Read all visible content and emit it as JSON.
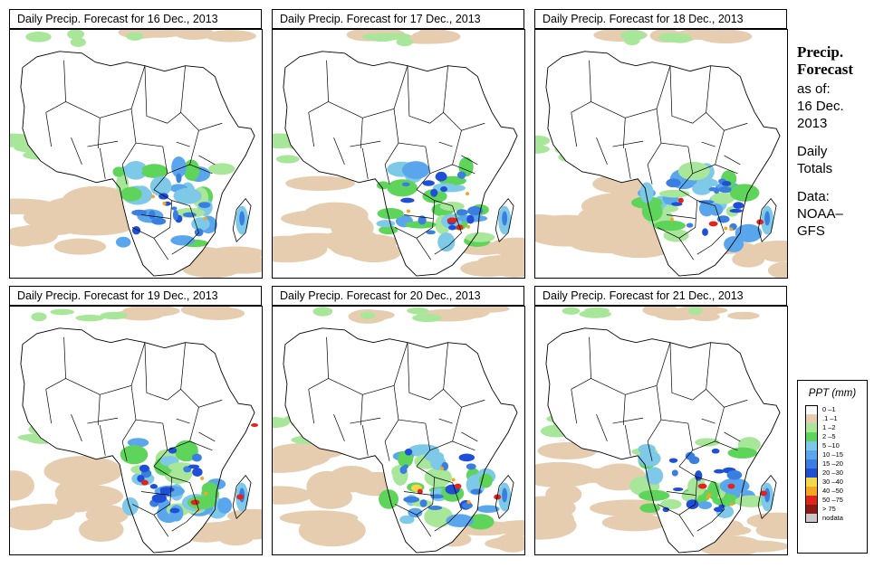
{
  "panels": [
    {
      "title": "Daily Precip. Forecast for  16 Dec., 2013"
    },
    {
      "title": "Daily Precip. Forecast for  17 Dec., 2013"
    },
    {
      "title": "Daily Precip. Forecast for  18 Dec., 2013"
    },
    {
      "title": "Daily Precip. Forecast for  19 Dec., 2013"
    },
    {
      "title": "Daily Precip. Forecast for  20 Dec., 2013"
    },
    {
      "title": "Daily Precip. Forecast for  21 Dec., 2013"
    }
  ],
  "sidebar": {
    "title_line1": "Precip.",
    "title_line2": "Forecast",
    "asof_label": "as of:",
    "asof_date_line1": "16 Dec.",
    "asof_date_line2": "2013",
    "type_line1": "Daily",
    "type_line2": "Totals",
    "source_line1": "Data:",
    "source_line2": "NOAA–",
    "source_line3": "GFS"
  },
  "legend": {
    "title": "PPT (mm)",
    "items": [
      {
        "label": "0 –1",
        "color": "#ffffff"
      },
      {
        "label": ".1 –1",
        "color": "#e6cdb0"
      },
      {
        "label": "1 –2",
        "color": "#a8e69a"
      },
      {
        "label": "2 –5",
        "color": "#5fd45a"
      },
      {
        "label": "5 –10",
        "color": "#7ec8e8"
      },
      {
        "label": "10 –15",
        "color": "#5aa6ec"
      },
      {
        "label": "15 –20",
        "color": "#3a7fe0"
      },
      {
        "label": "20 –30",
        "color": "#1f4fd6"
      },
      {
        "label": "30 –40",
        "color": "#f5d84a"
      },
      {
        "label": "40 –50",
        "color": "#f5a623"
      },
      {
        "label": "50 –75",
        "color": "#e0241b"
      },
      {
        "label": "> 75",
        "color": "#8b1a12"
      },
      {
        "label": "nodata",
        "color": "#c8c8c8"
      }
    ]
  }
}
